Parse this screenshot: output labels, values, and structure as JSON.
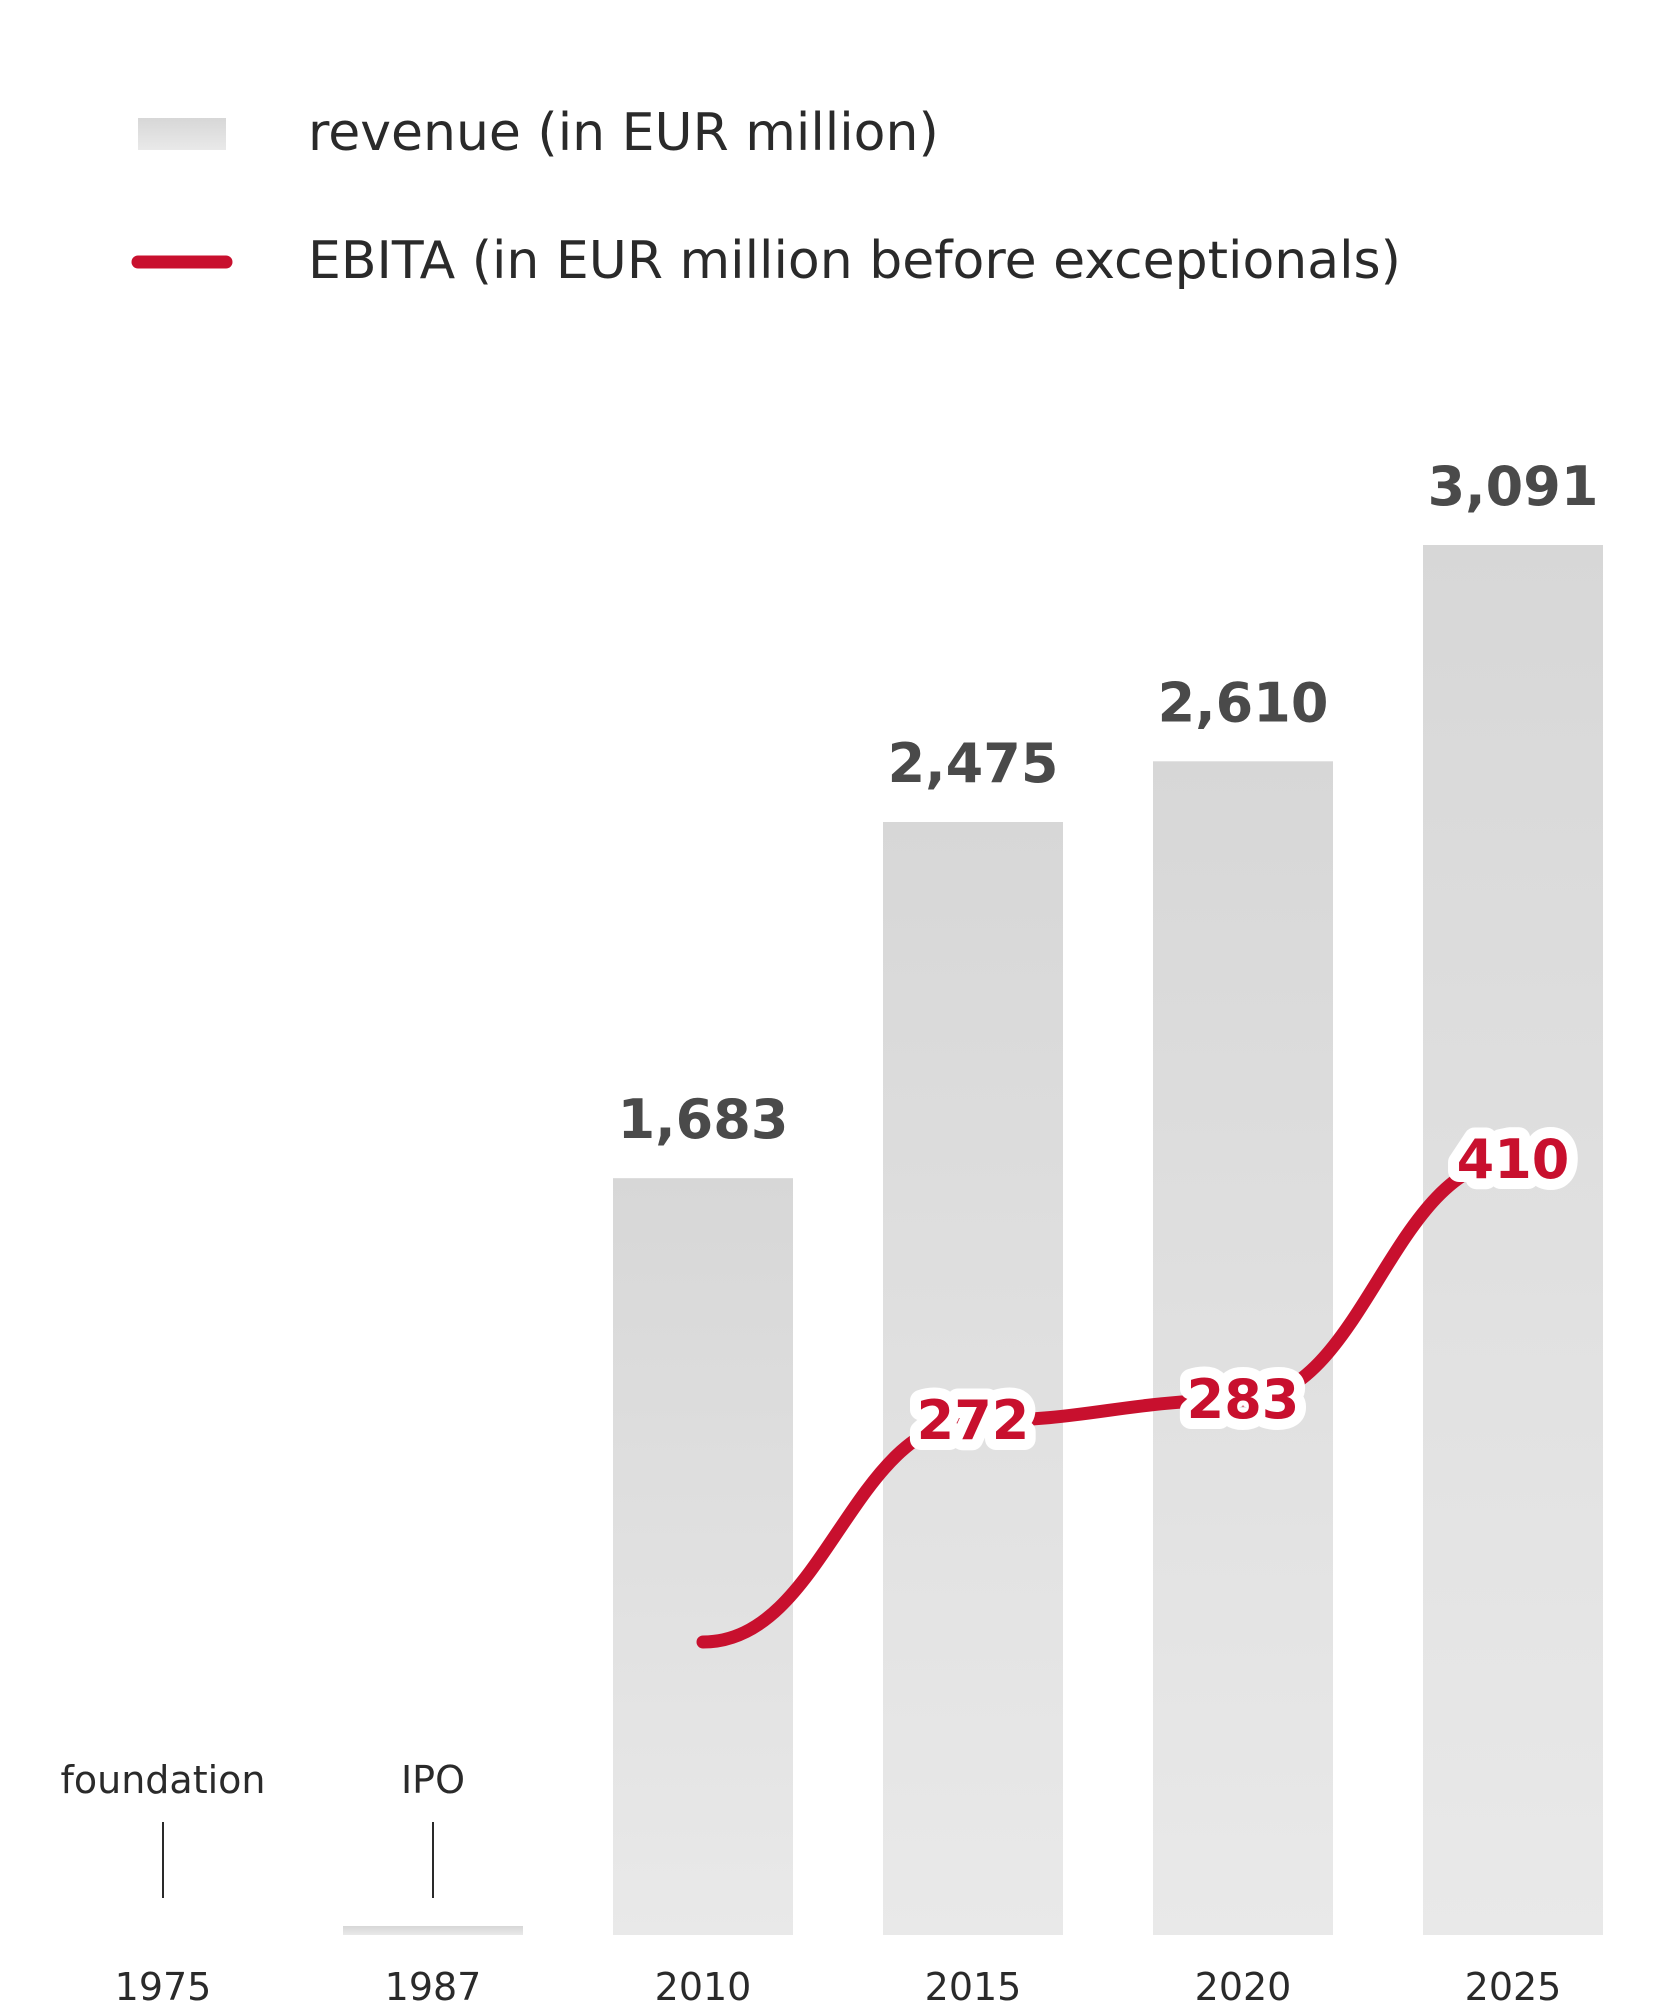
{
  "chart_data": {
    "type": "bar",
    "title": "",
    "xlabel": "",
    "ylabel": "",
    "ylim": [
      0,
      3500
    ],
    "legend_position": "top-left",
    "grid": false,
    "categories": [
      "1975",
      "1987",
      "2010",
      "2015",
      "2020",
      "2025"
    ],
    "series": [
      {
        "name": "revenue (in EUR million)",
        "kind": "bar",
        "values": [
          null,
          20,
          1683,
          2475,
          2610,
          3091
        ],
        "labels": [
          "",
          "",
          "1,683",
          "2,475",
          "2,610",
          "3,091"
        ]
      },
      {
        "name": "EBITA (in EUR million before exceptionals)",
        "kind": "line",
        "values": [
          null,
          null,
          155,
          272,
          283,
          410
        ],
        "labels": [
          "",
          "",
          "",
          "272",
          "283",
          "410"
        ]
      }
    ],
    "annotations": [
      {
        "category": "1975",
        "text": "foundation"
      },
      {
        "category": "1987",
        "text": "IPO"
      }
    ]
  },
  "colors": {
    "bar_top": "#d7d7d7",
    "bar_bottom": "#e9e9e9",
    "line": "#c8102e",
    "bar_label": "#4a4a4a",
    "text": "#2a2a2a"
  }
}
